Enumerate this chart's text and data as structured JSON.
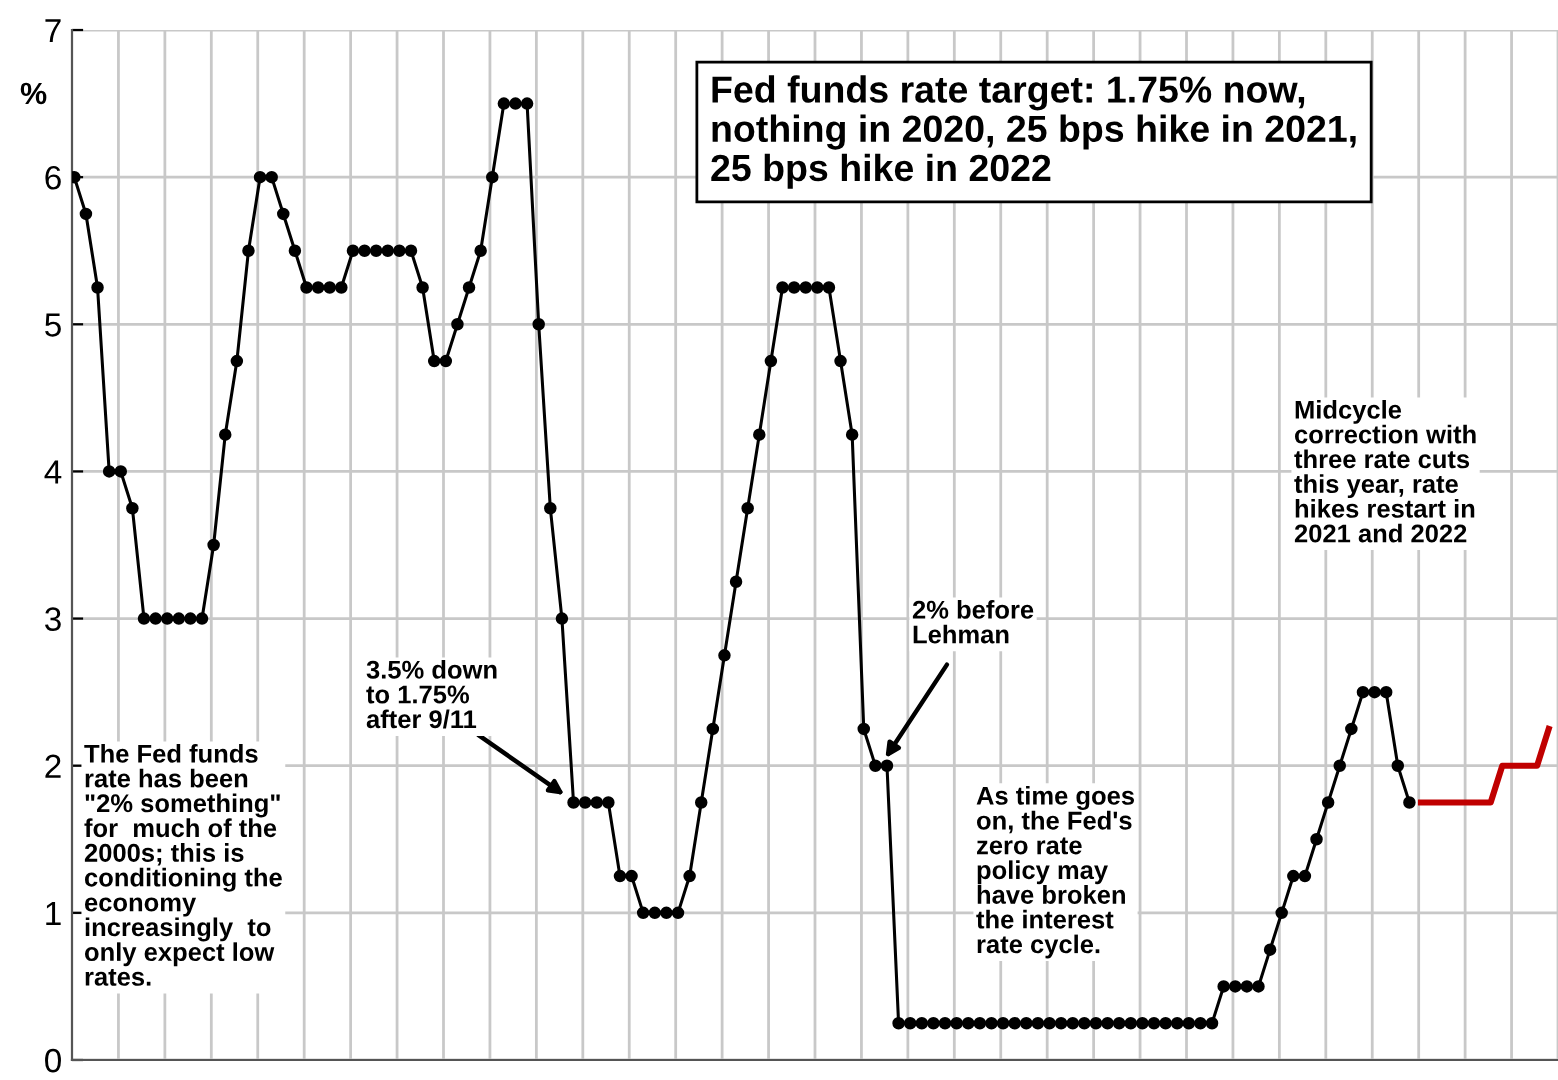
{
  "chart_data": {
    "type": "line",
    "title": "Fed funds rate target: 1.75% now,\nnothing in 2020, 25 bps hike in 2021,\n25 bps hike in 2022",
    "ylabel": "%",
    "categories": [
      null,
      null,
      null,
      null,
      null,
      null,
      null,
      null,
      null,
      null,
      null,
      null,
      null,
      null,
      null,
      null,
      null,
      null,
      null,
      null,
      null,
      null,
      null,
      null,
      null,
      null,
      null,
      null,
      null,
      null,
      null,
      null,
      null,
      null,
      null,
      null,
      null,
      null,
      null,
      null,
      null,
      null,
      null,
      null,
      null,
      null,
      null,
      null,
      null,
      null,
      null,
      null,
      null,
      null,
      null,
      null,
      null,
      null,
      null,
      null,
      null,
      null,
      null,
      null,
      null,
      null,
      null,
      null,
      null,
      null,
      null,
      null,
      null,
      null,
      null,
      null,
      null,
      null,
      null,
      null,
      null,
      null,
      null,
      null,
      null,
      null,
      null,
      null,
      null,
      null,
      null,
      null,
      null,
      null,
      null,
      null,
      null,
      null,
      null,
      null,
      null,
      null,
      null,
      null,
      null,
      null,
      null,
      null,
      null,
      null,
      null,
      null,
      null,
      null,
      null,
      null,
      null,
      null,
      null,
      null,
      null,
      null,
      null,
      null,
      null,
      null,
      null,
      null
    ],
    "series": [
      {
        "color": "#000000",
        "marker": "circle",
        "values": [
          6.0,
          5.75,
          5.25,
          4.0,
          4.0,
          3.75,
          3.0,
          3.0,
          3.0,
          3.0,
          3.0,
          3.0,
          3.5,
          4.25,
          4.75,
          5.5,
          6.0,
          6.0,
          5.75,
          5.5,
          5.25,
          5.25,
          5.25,
          5.25,
          5.5,
          5.5,
          5.5,
          5.5,
          5.5,
          5.5,
          5.25,
          4.75,
          4.75,
          5.0,
          5.25,
          5.5,
          6.0,
          6.5,
          6.5,
          6.5,
          5.0,
          3.75,
          3.0,
          1.75,
          1.75,
          1.75,
          1.75,
          1.25,
          1.25,
          1.0,
          1.0,
          1.0,
          1.0,
          1.25,
          1.75,
          2.25,
          2.75,
          3.25,
          3.75,
          4.25,
          4.75,
          5.25,
          5.25,
          5.25,
          5.25,
          5.25,
          4.75,
          4.25,
          2.25,
          2.0,
          2.0,
          0.25,
          0.25,
          0.25,
          0.25,
          0.25,
          0.25,
          0.25,
          0.25,
          0.25,
          0.25,
          0.25,
          0.25,
          0.25,
          0.25,
          0.25,
          0.25,
          0.25,
          0.25,
          0.25,
          0.25,
          0.25,
          0.25,
          0.25,
          0.25,
          0.25,
          0.25,
          0.25,
          0.25,
          0.5,
          0.5,
          0.5,
          0.5,
          0.75,
          1.0,
          1.25,
          1.25,
          1.5,
          1.75,
          2.0,
          2.25,
          2.5,
          2.5,
          2.5,
          2.0,
          1.75,
          null,
          null,
          null,
          null,
          null,
          null,
          null,
          null,
          null,
          null,
          null,
          null
        ]
      },
      {
        "color": "#c00000",
        "marker": "none",
        "values": [
          null,
          null,
          null,
          null,
          null,
          null,
          null,
          null,
          null,
          null,
          null,
          null,
          null,
          null,
          null,
          null,
          null,
          null,
          null,
          null,
          null,
          null,
          null,
          null,
          null,
          null,
          null,
          null,
          null,
          null,
          null,
          null,
          null,
          null,
          null,
          null,
          null,
          null,
          null,
          null,
          null,
          null,
          null,
          null,
          null,
          null,
          null,
          null,
          null,
          null,
          null,
          null,
          null,
          null,
          null,
          null,
          null,
          null,
          null,
          null,
          null,
          null,
          null,
          null,
          null,
          null,
          null,
          null,
          null,
          null,
          null,
          null,
          null,
          null,
          null,
          null,
          null,
          null,
          null,
          null,
          null,
          null,
          null,
          null,
          null,
          null,
          null,
          null,
          null,
          null,
          null,
          null,
          null,
          null,
          null,
          null,
          null,
          null,
          null,
          null,
          null,
          null,
          null,
          null,
          null,
          null,
          null,
          null,
          null,
          null,
          null,
          null,
          null,
          null,
          null,
          null,
          1.75,
          1.75,
          1.75,
          1.75,
          1.75,
          1.75,
          1.75,
          2.0,
          2.0,
          2.0,
          2.0,
          2.25
        ]
      }
    ],
    "ylim": [
      0,
      7
    ],
    "yticks": [
      0,
      1,
      2,
      3,
      4,
      5,
      6,
      7
    ],
    "grid": true,
    "legend": false,
    "tick_labels": "y",
    "annotations": [
      "The Fed funds\nrate has been\n\"2% something\"\nfor  much of the\n2000s; this is\nconditioning the\neconomy\nincreasingly  to\nonly expect low\nrates.",
      "3.5% down\nto 1.75%\nafter 9/11",
      "2% before\nLehman",
      "As time goes\non, the Fed's\nzero rate\npolicy may\nhave broken\nthe interest\nrate cycle.",
      "Midcycle\ncorrection with\nthree rate cuts\nthis year, rate\nhikes restart in\n2021 and 2022"
    ]
  }
}
